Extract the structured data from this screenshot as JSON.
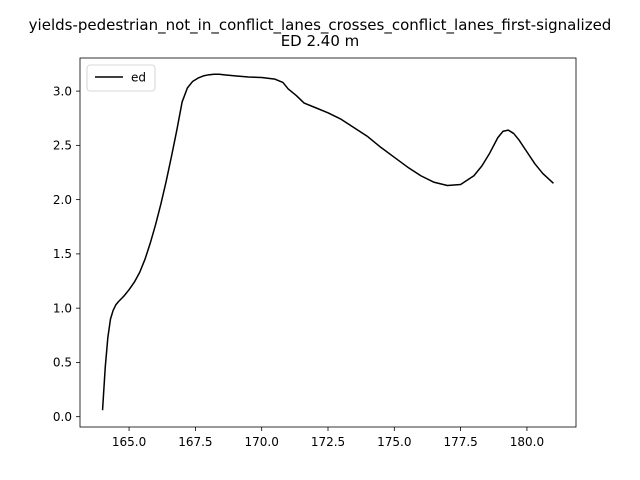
{
  "chart_data": {
    "type": "line",
    "title_line1": "yields-pedestrian_not_in_conflict_lanes_crosses_conflict_lanes_first-signalized",
    "title_line2": "ED 2.40 m",
    "xlabel": "",
    "ylabel": "",
    "xlim": [
      163.15,
      181.85
    ],
    "ylim": [
      -0.095,
      3.305
    ],
    "xticks": [
      165.0,
      167.5,
      170.0,
      172.5,
      175.0,
      177.5,
      180.0
    ],
    "xtick_labels": [
      "165.0",
      "167.5",
      "170.0",
      "172.5",
      "175.0",
      "177.5",
      "180.0"
    ],
    "yticks": [
      0.0,
      0.5,
      1.0,
      1.5,
      2.0,
      2.5,
      3.0
    ],
    "ytick_labels": [
      "0.0",
      "0.5",
      "1.0",
      "1.5",
      "2.0",
      "2.5",
      "3.0"
    ],
    "grid": false,
    "legend_position": "upper-left",
    "series": [
      {
        "name": "ed",
        "color": "#000000",
        "x": [
          164.0,
          164.1,
          164.2,
          164.3,
          164.4,
          164.5,
          164.6,
          164.8,
          165.0,
          165.2,
          165.4,
          165.6,
          165.8,
          166.0,
          166.2,
          166.4,
          166.6,
          166.8,
          167.0,
          167.2,
          167.4,
          167.6,
          167.8,
          168.0,
          168.2,
          168.4,
          168.6,
          168.8,
          169.0,
          169.5,
          170.0,
          170.5,
          170.8,
          171.0,
          171.3,
          171.6,
          172.0,
          172.5,
          173.0,
          173.5,
          174.0,
          174.5,
          175.0,
          175.5,
          176.0,
          176.5,
          177.0,
          177.5,
          178.0,
          178.3,
          178.6,
          178.9,
          179.1,
          179.3,
          179.5,
          179.7,
          180.0,
          180.3,
          180.6,
          181.0
        ],
        "y": [
          0.06,
          0.45,
          0.73,
          0.9,
          0.98,
          1.03,
          1.06,
          1.11,
          1.17,
          1.24,
          1.33,
          1.45,
          1.6,
          1.77,
          1.96,
          2.17,
          2.4,
          2.64,
          2.9,
          3.03,
          3.09,
          3.12,
          3.14,
          3.15,
          3.155,
          3.155,
          3.15,
          3.145,
          3.14,
          3.13,
          3.125,
          3.11,
          3.08,
          3.02,
          2.96,
          2.89,
          2.85,
          2.8,
          2.74,
          2.66,
          2.58,
          2.48,
          2.39,
          2.3,
          2.22,
          2.16,
          2.13,
          2.14,
          2.22,
          2.31,
          2.43,
          2.57,
          2.63,
          2.64,
          2.61,
          2.55,
          2.44,
          2.33,
          2.24,
          2.15
        ]
      }
    ]
  }
}
